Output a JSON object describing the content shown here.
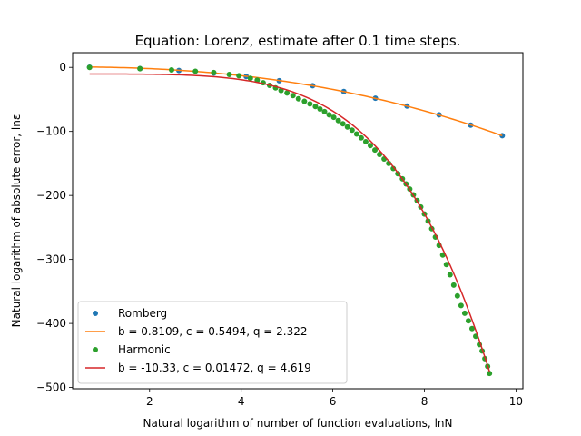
{
  "chart_data": {
    "type": "scatter",
    "title": "Equation: Lorenz, estimate after 0.1 time steps.",
    "xlabel": "Natural logarithm of number of function evaluations, lnN",
    "ylabel": "Natural logarithm of absolute error, lnε",
    "xlim": [
      0.32,
      10.15
    ],
    "ylim": [
      -502,
      23
    ],
    "xticks": [
      2,
      4,
      6,
      8,
      10
    ],
    "yticks": [
      0,
      -100,
      -200,
      -300,
      -400,
      -500
    ],
    "grid": false,
    "legend_position": "lower-left",
    "series": [
      {
        "name": "Romberg",
        "kind": "points",
        "color": "#1f77b4",
        "x": [
          0.69,
          1.79,
          2.64,
          3.4,
          4.11,
          4.83,
          5.56,
          6.24,
          6.93,
          7.62,
          8.32,
          9.01,
          9.7
        ],
        "y": [
          0.3,
          -1.9,
          -4.8,
          -8.9,
          -14.2,
          -20.8,
          -28.6,
          -37.7,
          -48.1,
          -60.3,
          -74.0,
          -90.1,
          -106.6
        ]
      },
      {
        "name": "b = 0.8109, c = 0.5494, q = 2.322",
        "kind": "line",
        "color": "#ff7f0e",
        "model": {
          "b": 0.8109,
          "c": 0.5494,
          "q": 2.322
        },
        "x_range": [
          0.69,
          9.7
        ]
      },
      {
        "name": "Harmonic",
        "kind": "points",
        "color": "#2ca02c",
        "x": [
          0.69,
          1.79,
          2.48,
          3.0,
          3.4,
          3.74,
          3.95,
          4.2,
          4.35,
          4.48,
          4.62,
          4.75,
          4.87,
          5.0,
          5.13,
          5.25,
          5.38,
          5.5,
          5.62,
          5.72,
          5.82,
          5.92,
          6.02,
          6.12,
          6.22,
          6.32,
          6.42,
          6.52,
          6.62,
          6.72,
          6.82,
          6.92,
          7.02,
          7.12,
          7.22,
          7.32,
          7.42,
          7.52,
          7.6,
          7.68,
          7.76,
          7.84,
          7.92,
          8.0,
          8.08,
          8.16,
          8.24,
          8.32,
          8.4,
          8.48,
          8.56,
          8.64,
          8.72,
          8.8,
          8.88,
          8.96,
          9.04,
          9.12,
          9.2,
          9.26,
          9.32,
          9.38,
          9.42
        ],
        "y": [
          0,
          -2,
          -4,
          -6,
          -8,
          -11,
          -13,
          -17,
          -20,
          -24,
          -28,
          -32,
          -36,
          -40,
          -44,
          -49,
          -53,
          -57,
          -61,
          -65,
          -69,
          -74,
          -78,
          -83,
          -88,
          -93,
          -98,
          -104,
          -110,
          -116,
          -122,
          -129,
          -136,
          -143,
          -150,
          -158,
          -166,
          -174,
          -182,
          -190,
          -199,
          -208,
          -218,
          -229,
          -240,
          -252,
          -265,
          -278,
          -293,
          -308,
          -324,
          -340,
          -357,
          -372,
          -384,
          -396,
          -408,
          -420,
          -433,
          -443,
          -455,
          -467,
          -478
        ]
      },
      {
        "name": "b = -10.33, c = 0.01472, q = 4.619",
        "kind": "line",
        "color": "#d62728",
        "model": {
          "b": -10.33,
          "c": 0.01472,
          "q": 4.619
        },
        "x_range": [
          0.69,
          9.42
        ]
      }
    ]
  }
}
